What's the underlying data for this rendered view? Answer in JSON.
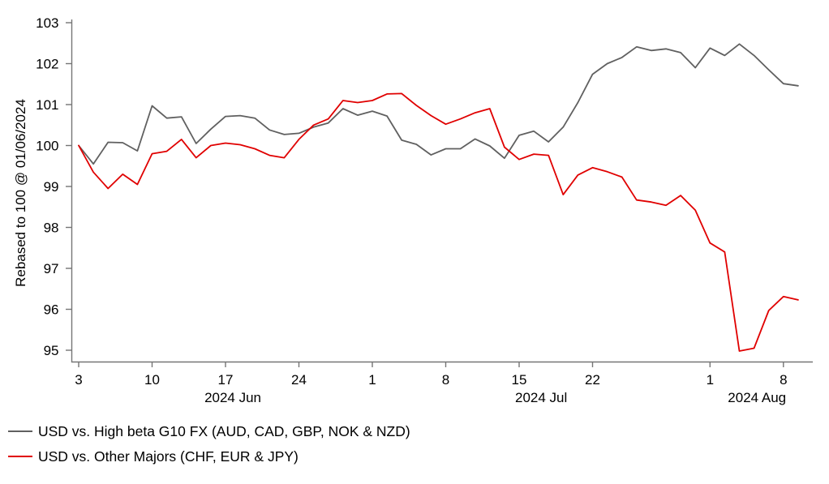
{
  "chart_data": {
    "type": "line",
    "title": "",
    "xlabel": "",
    "ylabel": "Rebased to 100 @ 01/06/2024",
    "ylim": [
      95,
      103
    ],
    "grid": false,
    "legend_position": "bottom-left",
    "axis_color": "#757575",
    "y_ticks": [
      95,
      96,
      97,
      98,
      99,
      100,
      101,
      102,
      103
    ],
    "categories": [
      "Jun 3",
      "Jun 4",
      "Jun 5",
      "Jun 6",
      "Jun 7",
      "Jun 10",
      "Jun 11",
      "Jun 12",
      "Jun 13",
      "Jun 14",
      "Jun 17",
      "Jun 18",
      "Jun 19",
      "Jun 20",
      "Jun 21",
      "Jun 24",
      "Jun 25",
      "Jun 26",
      "Jun 27",
      "Jun 28",
      "Jul 1",
      "Jul 2",
      "Jul 3",
      "Jul 4",
      "Jul 5",
      "Jul 8",
      "Jul 9",
      "Jul 10",
      "Jul 11",
      "Jul 12",
      "Jul 15",
      "Jul 16",
      "Jul 17",
      "Jul 18",
      "Jul 19",
      "Jul 22",
      "Jul 23",
      "Jul 24",
      "Jul 25",
      "Jul 26",
      "Jul 29",
      "Jul 30",
      "Jul 31",
      "Aug 1",
      "Aug 2",
      "Aug 5",
      "Aug 6",
      "Aug 7",
      "Aug 8",
      "Aug 9"
    ],
    "x_ticks": [
      {
        "index": 0,
        "label": "3"
      },
      {
        "index": 5,
        "label": "10"
      },
      {
        "index": 10,
        "label": "17"
      },
      {
        "index": 15,
        "label": "24"
      },
      {
        "index": 20,
        "label": "1"
      },
      {
        "index": 25,
        "label": "8"
      },
      {
        "index": 30,
        "label": "15"
      },
      {
        "index": 35,
        "label": "22"
      },
      {
        "index": 43,
        "label": "1"
      },
      {
        "index": 48,
        "label": "8"
      }
    ],
    "month_labels": [
      {
        "label": "2024 Jun",
        "index": 10.5
      },
      {
        "label": "2024 Jul",
        "index": 31.5
      },
      {
        "label": "2024 Aug",
        "index": 46.2
      }
    ],
    "series": [
      {
        "name": "USD vs. High beta G10 FX (AUD, CAD, GBP, NOK & NZD)",
        "color": "#606060",
        "values": [
          100.0,
          99.55,
          100.08,
          100.07,
          99.87,
          100.97,
          100.67,
          100.7,
          100.05,
          100.4,
          100.71,
          100.73,
          100.67,
          100.38,
          100.27,
          100.3,
          100.45,
          100.55,
          100.9,
          100.74,
          100.84,
          100.72,
          100.13,
          100.03,
          99.77,
          99.92,
          99.92,
          100.16,
          99.99,
          99.69,
          100.25,
          100.35,
          100.09,
          100.45,
          101.05,
          101.74,
          102.0,
          102.15,
          102.41,
          102.32,
          102.36,
          102.27,
          101.9,
          102.38,
          102.2,
          102.48,
          102.2,
          101.85,
          101.51,
          101.46
        ]
      },
      {
        "name": "USD vs. Other Majors (CHF, EUR & JPY)",
        "color": "#e00000",
        "values": [
          100.0,
          99.35,
          98.95,
          99.3,
          99.05,
          99.8,
          99.86,
          100.15,
          99.7,
          100.0,
          100.06,
          100.02,
          99.92,
          99.76,
          99.7,
          100.15,
          100.5,
          100.65,
          101.1,
          101.05,
          101.1,
          101.26,
          101.27,
          100.98,
          100.73,
          100.52,
          100.65,
          100.8,
          100.9,
          99.96,
          99.66,
          99.79,
          99.76,
          98.8,
          99.28,
          99.46,
          99.36,
          99.23,
          98.67,
          98.62,
          98.54,
          98.78,
          98.42,
          97.62,
          97.4,
          94.98,
          95.05,
          95.97,
          96.31,
          96.23
        ]
      }
    ]
  }
}
